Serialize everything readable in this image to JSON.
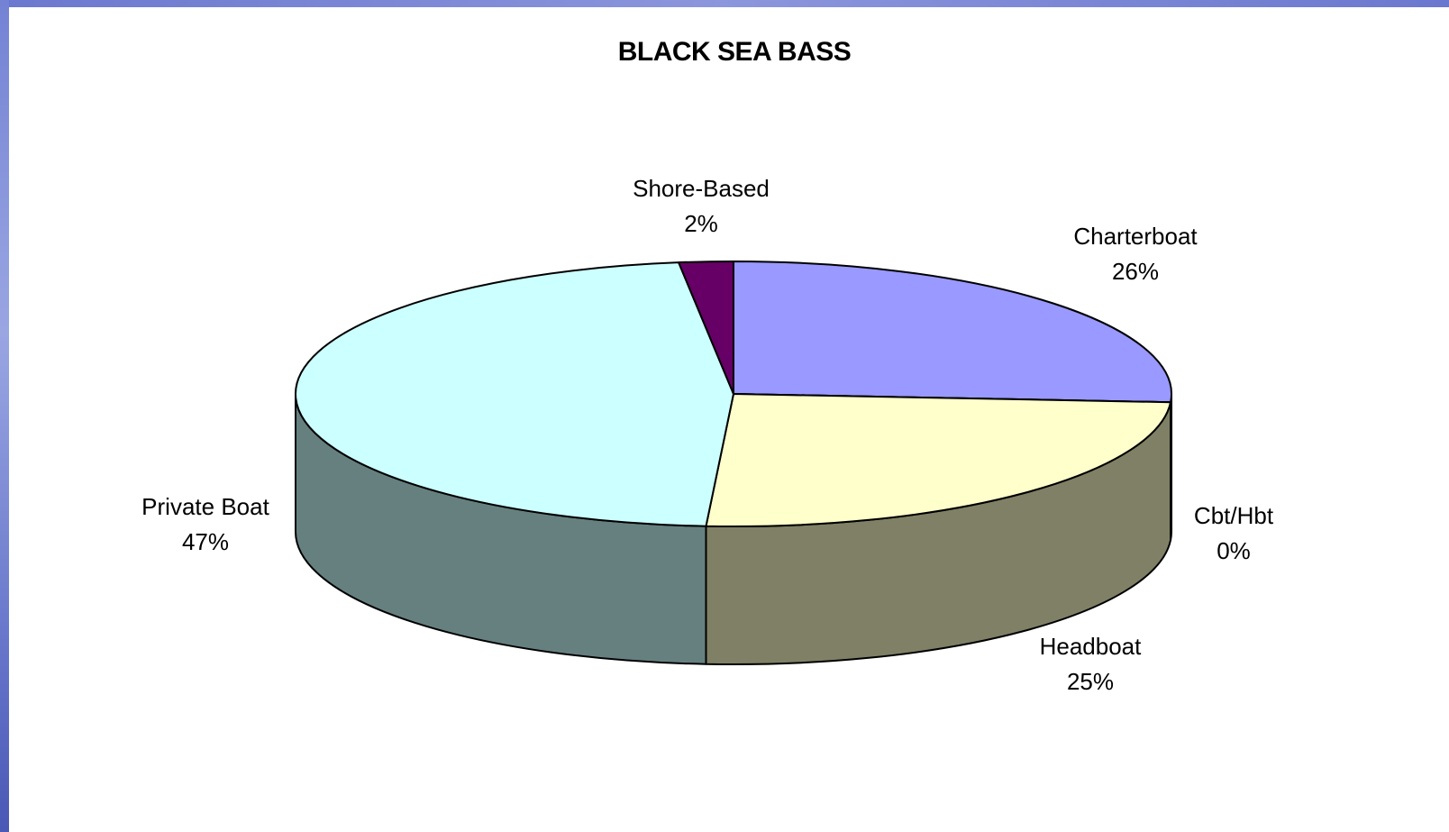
{
  "chart_data": {
    "type": "pie",
    "three_d": true,
    "title": "BLACK SEA BASS",
    "legend": "none",
    "slices": [
      {
        "name": "Charterboat",
        "value": 26,
        "label": "26%",
        "color": "#9999ff",
        "side_color": "#7a7ad0"
      },
      {
        "name": "Cbt/Hbt",
        "value": 0,
        "label": "0%",
        "color": "#993366",
        "side_color": "#6e2448"
      },
      {
        "name": "Headboat",
        "value": 25,
        "label": "25%",
        "color": "#ffffcc",
        "side_color": "#808066"
      },
      {
        "name": "Private Boat",
        "value": 47,
        "label": "47%",
        "color": "#ccffff",
        "side_color": "#668080"
      },
      {
        "name": "Shore-Based",
        "value": 2,
        "label": "2%",
        "color": "#660066",
        "side_color": "#4d004d"
      }
    ]
  }
}
